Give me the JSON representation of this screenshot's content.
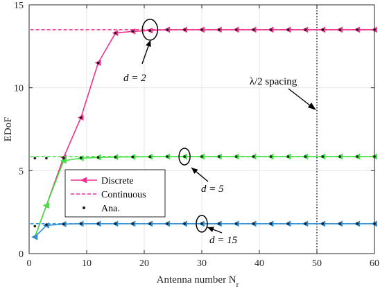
{
  "chart_data": {
    "type": "line",
    "xlabel": "Antenna number N",
    "xlabel_sub": "r",
    "ylabel": "EDoF",
    "xlim": [
      0,
      60
    ],
    "ylim": [
      0,
      15
    ],
    "xticks": [
      0,
      10,
      20,
      30,
      40,
      50,
      60
    ],
    "yticks": [
      0,
      5,
      10,
      15
    ],
    "grid": true,
    "legend": {
      "position": "bottom-left",
      "entries": [
        {
          "label": "Discrete",
          "style": "solid-triangle"
        },
        {
          "label": "Continuous",
          "style": "dashed"
        },
        {
          "label": "Ana.",
          "style": "dot"
        }
      ]
    },
    "series": [
      {
        "label": "d = 2",
        "color": "#f0308c",
        "continuous": 13.5,
        "discrete": {
          "x": [
            1,
            3,
            6,
            9,
            12,
            15,
            18,
            21,
            24,
            27,
            30,
            33,
            36,
            39,
            42,
            45,
            48,
            51,
            54,
            57,
            60
          ],
          "y": [
            1.0,
            2.9,
            5.8,
            8.2,
            11.5,
            13.3,
            13.4,
            13.45,
            13.5,
            13.5,
            13.5,
            13.5,
            13.5,
            13.5,
            13.5,
            13.5,
            13.5,
            13.5,
            13.5,
            13.5,
            13.5
          ]
        },
        "analytic": {
          "x": [
            1,
            3,
            6,
            9,
            12,
            15,
            18,
            21,
            24,
            27,
            30,
            33,
            36,
            39,
            42,
            45,
            48,
            51,
            54,
            57,
            60
          ],
          "y": [
            1.0,
            2.9,
            5.8,
            8.2,
            11.5,
            13.3,
            13.4,
            13.45,
            13.5,
            13.5,
            13.5,
            13.5,
            13.5,
            13.5,
            13.5,
            13.5,
            13.5,
            13.5,
            13.5,
            13.5,
            13.5
          ]
        }
      },
      {
        "label": "d = 5",
        "color": "#3fe03f",
        "continuous": 5.85,
        "discrete": {
          "x": [
            1,
            3,
            6,
            9,
            12,
            15,
            18,
            21,
            24,
            27,
            30,
            33,
            36,
            39,
            42,
            45,
            48,
            51,
            54,
            57,
            60
          ],
          "y": [
            1.0,
            2.9,
            5.6,
            5.75,
            5.8,
            5.82,
            5.83,
            5.84,
            5.85,
            5.85,
            5.85,
            5.85,
            5.85,
            5.85,
            5.85,
            5.85,
            5.85,
            5.85,
            5.85,
            5.85,
            5.85
          ]
        },
        "analytic": {
          "x": [
            1,
            3,
            6,
            9,
            12,
            15,
            18,
            21,
            24,
            27,
            30,
            33,
            36,
            39,
            42,
            45,
            48,
            51,
            54,
            57,
            60
          ],
          "y": [
            5.75,
            5.75,
            5.75,
            5.78,
            5.8,
            5.82,
            5.83,
            5.84,
            5.85,
            5.85,
            5.85,
            5.85,
            5.85,
            5.85,
            5.85,
            5.85,
            5.85,
            5.85,
            5.85,
            5.85,
            5.85
          ]
        }
      },
      {
        "label": "d = 15",
        "color": "#2a8ed6",
        "continuous": 1.8,
        "discrete": {
          "x": [
            1,
            3,
            6,
            9,
            12,
            15,
            18,
            21,
            24,
            27,
            30,
            33,
            36,
            39,
            42,
            45,
            48,
            51,
            54,
            57,
            60
          ],
          "y": [
            1.0,
            1.7,
            1.78,
            1.8,
            1.8,
            1.8,
            1.8,
            1.8,
            1.8,
            1.8,
            1.8,
            1.8,
            1.8,
            1.8,
            1.8,
            1.8,
            1.8,
            1.8,
            1.8,
            1.8,
            1.8
          ]
        },
        "analytic": {
          "x": [
            1,
            3,
            6,
            9,
            12,
            15,
            18,
            21,
            24,
            27,
            30,
            33,
            36,
            39,
            42,
            45,
            48,
            51,
            54,
            57,
            60
          ],
          "y": [
            1.65,
            1.75,
            1.78,
            1.8,
            1.8,
            1.8,
            1.8,
            1.8,
            1.8,
            1.8,
            1.8,
            1.8,
            1.8,
            1.8,
            1.8,
            1.8,
            1.8,
            1.8,
            1.8,
            1.8,
            1.8
          ]
        }
      }
    ],
    "vline": {
      "x": 50,
      "label": "λ/2 spacing"
    },
    "annotations": [
      {
        "series_index": 0,
        "text": "d = 2",
        "mark_x": 21,
        "mark_y": 13.5
      },
      {
        "series_index": 1,
        "text": "d = 5",
        "mark_x": 27,
        "mark_y": 5.85
      },
      {
        "series_index": 2,
        "text": "d = 15",
        "mark_x": 30,
        "mark_y": 1.8
      }
    ]
  }
}
